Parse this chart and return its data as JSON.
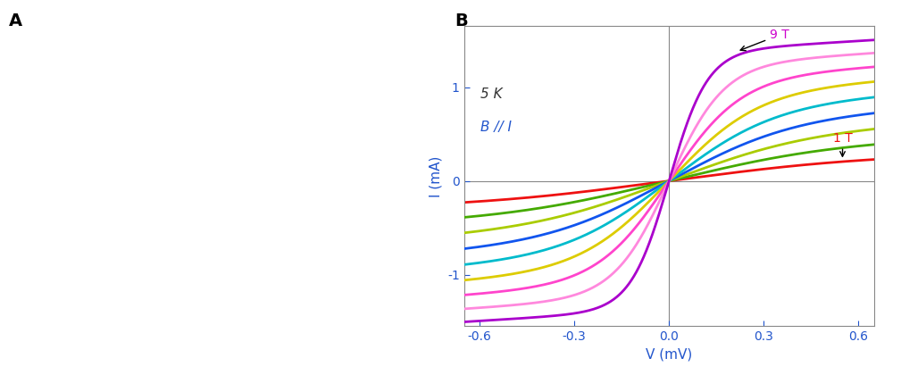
{
  "panel_B": {
    "xlim": [
      -0.65,
      0.65
    ],
    "ylim": [
      -1.55,
      1.65
    ],
    "xlabel": "V (mV)",
    "ylabel": "I (mA)",
    "xticks": [
      -0.6,
      -0.3,
      0.0,
      0.3,
      0.6
    ],
    "yticks": [
      -1,
      0,
      1
    ],
    "xtick_labels": [
      "-0.6",
      "-0.3",
      "0.0",
      "0.3",
      "0.6"
    ],
    "ytick_labels": [
      "-1",
      "0",
      "1"
    ],
    "annotation_5K": "5 K",
    "annotation_BII": "B // I",
    "annotation_9T": "9 T",
    "annotation_1T": "1 T",
    "B_values": [
      1,
      2,
      3,
      4,
      5,
      6,
      7,
      8,
      9
    ],
    "colors": [
      "#ee1111",
      "#44aa00",
      "#aacc00",
      "#1155ee",
      "#00bbcc",
      "#ddcc00",
      "#ff44cc",
      "#ff88dd",
      "#aa00cc"
    ],
    "label_color_9T": "#cc00cc",
    "label_color_1T": "#ee1111",
    "text_color_5K": "#333333",
    "text_color_BII": "#2255cc",
    "axis_color": "#2255cc",
    "spine_color": "#888888",
    "crosshair_color": "#888888"
  }
}
